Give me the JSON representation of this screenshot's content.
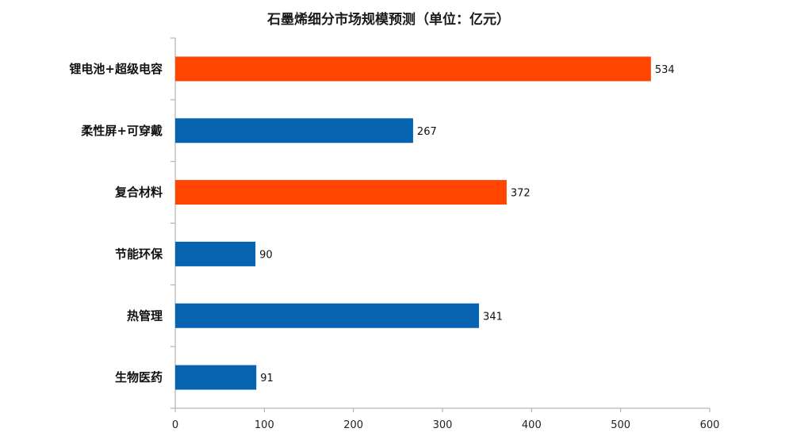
{
  "chart_data": {
    "type": "bar",
    "orientation": "horizontal",
    "title": "石墨烯细分市场规模预测（单位：亿元）",
    "categories": [
      "锂电池+超级电容",
      "柔性屏+可穿戴",
      "复合材料",
      "节能环保",
      "热管理",
      "生物医药"
    ],
    "values": [
      534,
      267,
      372,
      90,
      341,
      91
    ],
    "data_labels": [
      "534",
      "267",
      "372",
      "90",
      "341",
      "91"
    ],
    "bar_colors": [
      "#ff4500",
      "#0563b0",
      "#ff4500",
      "#0563b0",
      "#0563b0",
      "#0563b0"
    ],
    "xlim": [
      0,
      600
    ],
    "xticks": [
      "0",
      "100",
      "200",
      "300",
      "400",
      "500",
      "600"
    ],
    "xtick_values": [
      0,
      100,
      200,
      300,
      400,
      500,
      600
    ],
    "grid": false,
    "legend": "none"
  },
  "colors": {
    "highlight": "#ff4500",
    "primary": "#0563b0",
    "axis": "#a6a6a6"
  }
}
